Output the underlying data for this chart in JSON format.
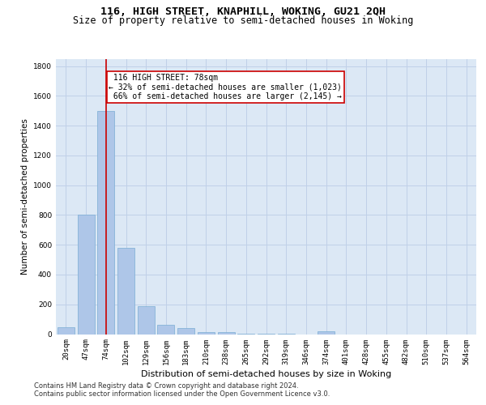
{
  "title1": "116, HIGH STREET, KNAPHILL, WOKING, GU21 2QH",
  "title2": "Size of property relative to semi-detached houses in Woking",
  "xlabel": "Distribution of semi-detached houses by size in Woking",
  "ylabel": "Number of semi-detached properties",
  "footnote1": "Contains HM Land Registry data © Crown copyright and database right 2024.",
  "footnote2": "Contains public sector information licensed under the Open Government Licence v3.0.",
  "categories": [
    "20sqm",
    "47sqm",
    "74sqm",
    "102sqm",
    "129sqm",
    "156sqm",
    "183sqm",
    "210sqm",
    "238sqm",
    "265sqm",
    "292sqm",
    "319sqm",
    "346sqm",
    "374sqm",
    "401sqm",
    "428sqm",
    "455sqm",
    "482sqm",
    "510sqm",
    "537sqm",
    "564sqm"
  ],
  "values": [
    47,
    800,
    1500,
    580,
    190,
    60,
    40,
    15,
    15,
    5,
    5,
    5,
    0,
    20,
    0,
    0,
    0,
    0,
    0,
    0,
    0
  ],
  "bar_color": "#aec6e8",
  "bar_edge_color": "#7aadd4",
  "property_bin_index": 2,
  "property_label": "116 HIGH STREET: 78sqm",
  "pct_smaller": 32,
  "count_smaller": 1023,
  "pct_larger": 66,
  "count_larger": 2145,
  "vline_color": "#cc0000",
  "annotation_box_color": "#cc0000",
  "annotation_fill": "#ffffff",
  "ylim": [
    0,
    1850
  ],
  "yticks": [
    0,
    200,
    400,
    600,
    800,
    1000,
    1200,
    1400,
    1600,
    1800
  ],
  "grid_color": "#c0d0e8",
  "bg_color": "#dce8f5",
  "title1_fontsize": 9.5,
  "title2_fontsize": 8.5,
  "xlabel_fontsize": 8,
  "ylabel_fontsize": 7.5,
  "tick_fontsize": 6.5,
  "annot_fontsize": 7,
  "footnote_fontsize": 6
}
